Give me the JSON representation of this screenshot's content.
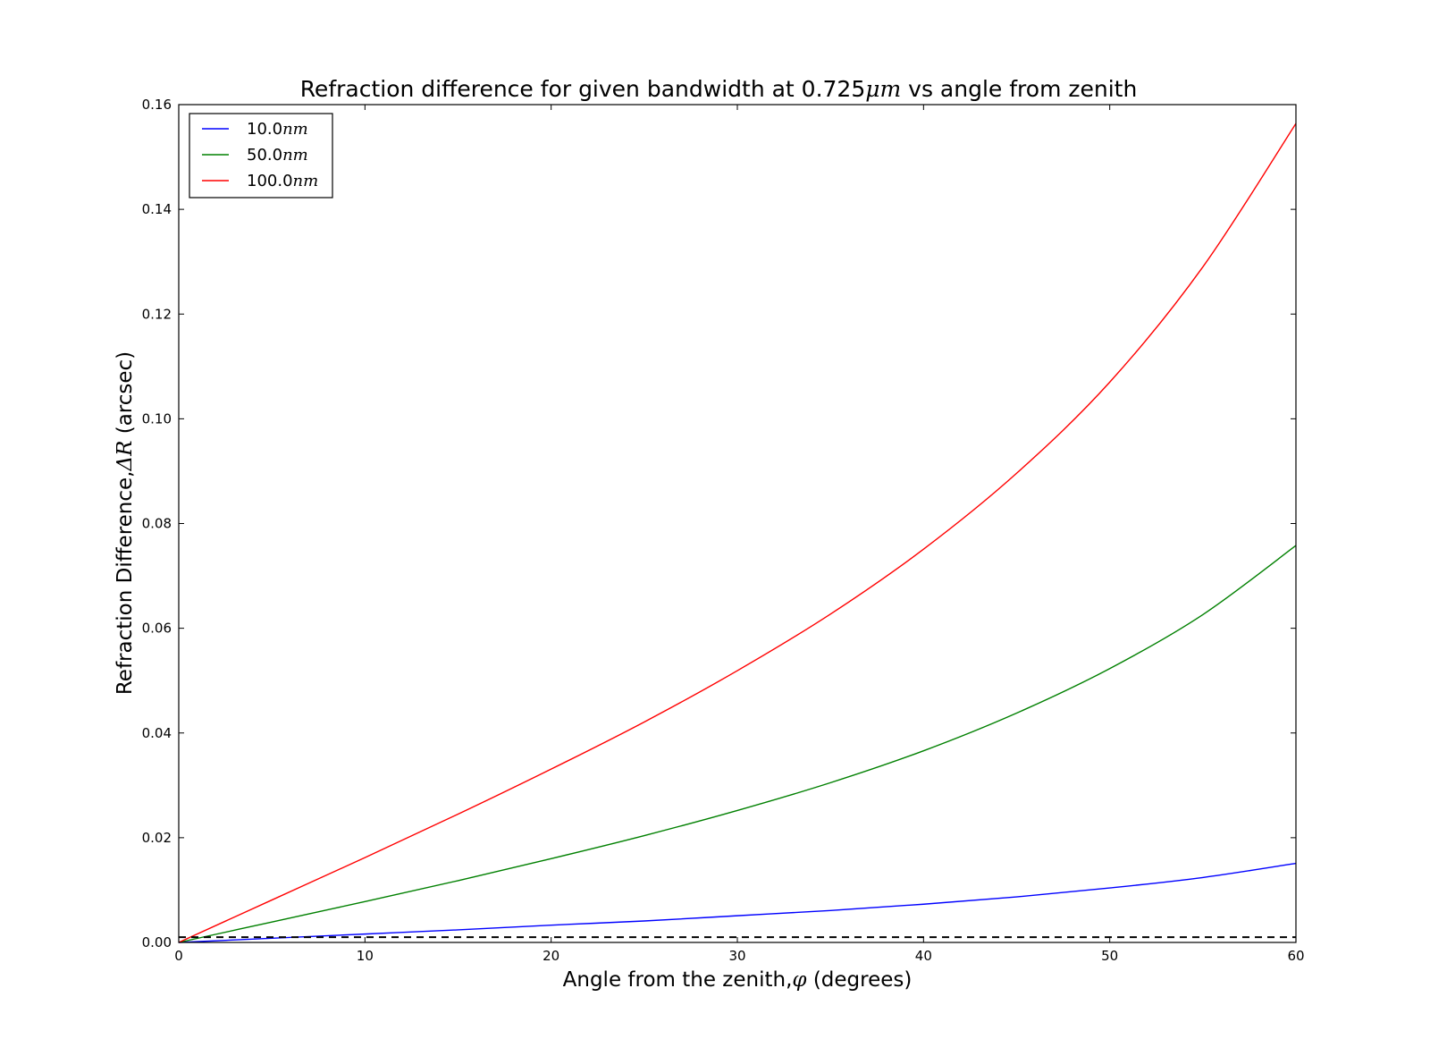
{
  "chart_data": {
    "type": "line",
    "title_parts": [
      "Refraction difference for given bandwidth at 0.725",
      "μm",
      " vs angle from zenith"
    ],
    "xlabel_parts": [
      "Angle from the zenith,",
      "φ",
      " (degrees)"
    ],
    "ylabel_parts": [
      "Refraction Difference,",
      "ΔR",
      " (arcsec)"
    ],
    "xlim": [
      0,
      60
    ],
    "ylim": [
      0,
      0.16
    ],
    "xticks": [
      0,
      10,
      20,
      30,
      40,
      50,
      60
    ],
    "yticks": [
      0.0,
      0.02,
      0.04,
      0.06,
      0.08,
      0.1,
      0.12,
      0.14,
      0.16
    ],
    "xtick_labels": [
      "0",
      "10",
      "20",
      "30",
      "40",
      "50",
      "60"
    ],
    "ytick_labels": [
      "0.00",
      "0.02",
      "0.04",
      "0.06",
      "0.08",
      "0.10",
      "0.12",
      "0.14",
      "0.16"
    ],
    "grid": false,
    "legend_position": "upper-left",
    "series": [
      {
        "name_parts": [
          "10.0",
          "nm"
        ],
        "color": "#0000ff",
        "x": [
          0,
          5,
          10,
          15,
          20,
          25,
          30,
          35,
          40,
          45,
          50,
          55,
          60
        ],
        "y": [
          0.0,
          0.0008,
          0.0016,
          0.0024,
          0.0033,
          0.0041,
          0.0051,
          0.0061,
          0.0073,
          0.0087,
          0.0104,
          0.0124,
          0.0151
        ]
      },
      {
        "name_parts": [
          "50.0",
          "nm"
        ],
        "color": "#008000",
        "x": [
          0,
          5,
          10,
          15,
          20,
          25,
          30,
          35,
          40,
          45,
          50,
          55,
          60
        ],
        "y": [
          0.0,
          0.0039,
          0.0078,
          0.0118,
          0.016,
          0.0204,
          0.0252,
          0.0305,
          0.0366,
          0.0438,
          0.0523,
          0.0626,
          0.0758
        ]
      },
      {
        "name_parts": [
          "100.0",
          "nm"
        ],
        "color": "#ff0000",
        "x": [
          0,
          5,
          10,
          15,
          20,
          25,
          30,
          35,
          40,
          45,
          50,
          55,
          60
        ],
        "y": [
          0.0,
          0.0081,
          0.0162,
          0.0245,
          0.0331,
          0.0421,
          0.0519,
          0.0627,
          0.0751,
          0.0896,
          0.107,
          0.129,
          0.1564
        ]
      },
      {
        "style": "dashed",
        "color": "#000000",
        "x": [
          0,
          60
        ],
        "y": [
          0.001,
          0.001
        ]
      }
    ]
  }
}
